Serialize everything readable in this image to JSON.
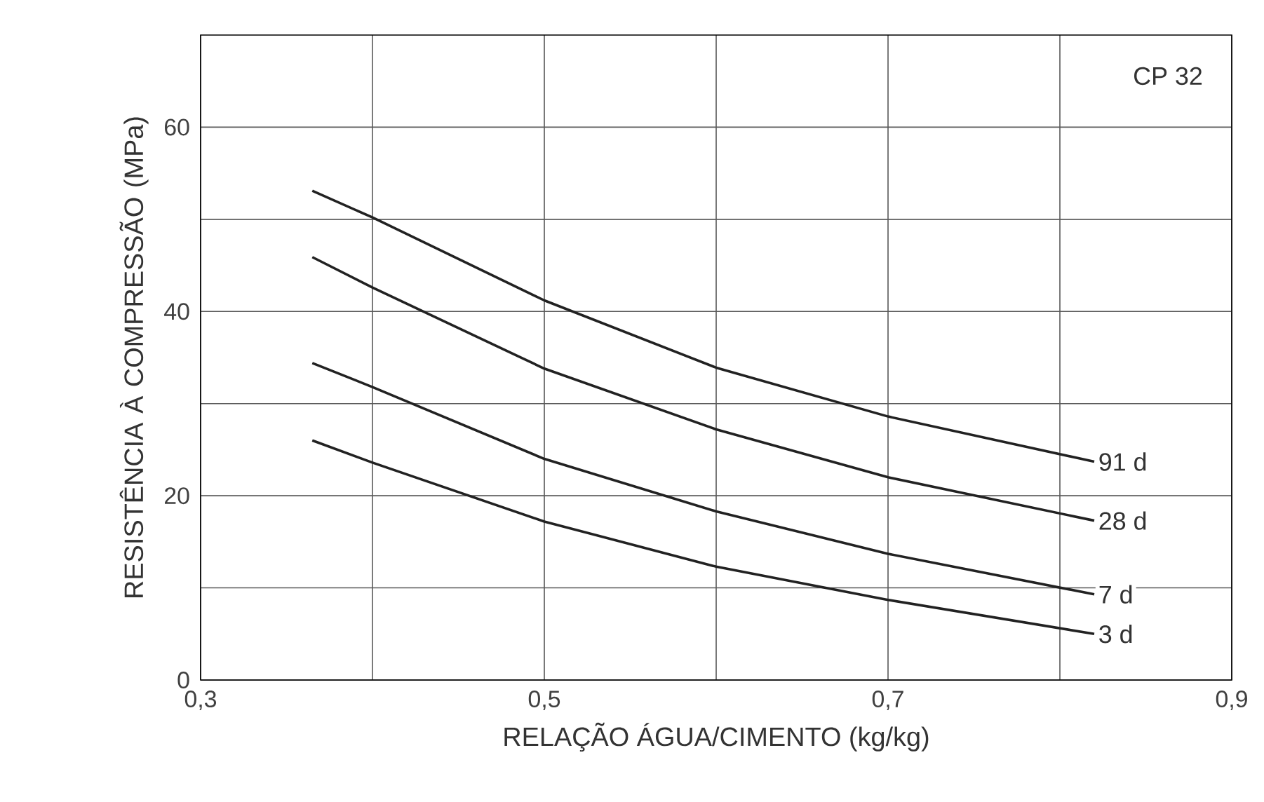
{
  "chart_data": {
    "type": "line",
    "annotations": [
      "CP 32"
    ],
    "xlabel": "RELAÇÃO ÁGUA/CIMENTO (kg/kg)",
    "ylabel": "RESISTÊNCIA À COMPRESSÃO (MPa)",
    "xlim": [
      0.3,
      0.9
    ],
    "xticks": [
      {
        "value": 0.3,
        "label": "0,3"
      },
      {
        "value": 0.4,
        "label": null
      },
      {
        "value": 0.5,
        "label": "0,5"
      },
      {
        "value": 0.6,
        "label": null
      },
      {
        "value": 0.7,
        "label": "0,7"
      },
      {
        "value": 0.8,
        "label": null
      },
      {
        "value": 0.9,
        "label": "0,9"
      }
    ],
    "ylim": [
      0,
      70
    ],
    "yticks": [
      0,
      {
        "value": 10,
        "label": null
      },
      20,
      {
        "value": 30,
        "label": null
      },
      40,
      {
        "value": 50,
        "label": null
      },
      60
    ],
    "grid": true,
    "marker": "none",
    "line_style": "solid",
    "x": [
      0.365,
      0.4,
      0.5,
      0.6,
      0.7,
      0.82
    ],
    "series": [
      {
        "name": "91 d",
        "color": "#222222",
        "values": [
          53.1,
          50.2,
          41.2,
          33.9,
          28.6,
          23.7
        ]
      },
      {
        "name": "28 d",
        "color": "#222222",
        "values": [
          45.9,
          42.6,
          33.8,
          27.2,
          22.0,
          17.3
        ]
      },
      {
        "name": "7 d",
        "color": "#222222",
        "values": [
          34.4,
          31.8,
          24.0,
          18.3,
          13.7,
          9.3
        ]
      },
      {
        "name": "3 d",
        "color": "#222222",
        "values": [
          26.0,
          23.6,
          17.2,
          12.3,
          8.7,
          5.0
        ]
      }
    ]
  }
}
